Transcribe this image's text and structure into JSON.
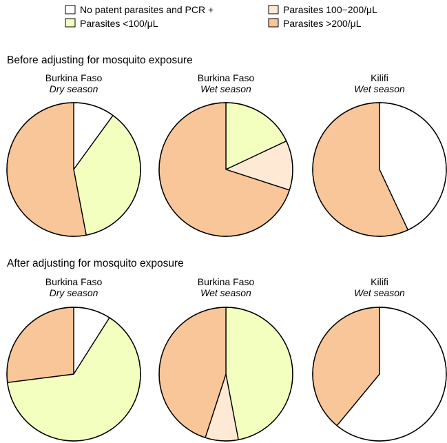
{
  "legend": [
    {
      "label": "No patent parasites and PCR +",
      "color": "#ffffff"
    },
    {
      "label": "Parasites <100/μL",
      "color": "#f2ffbe"
    },
    {
      "label": "Parasites 100−200/μL",
      "color": "#fde9d4"
    },
    {
      "label": "Parasites >200/μL",
      "color": "#f8c698"
    }
  ],
  "chart_data": {
    "type": "pie",
    "categories": [
      "No patent parasites and PCR +",
      "Parasites <100/μL",
      "Parasites 100−200/μL",
      "Parasites >200/μL"
    ],
    "colors": [
      "#ffffff",
      "#f2ffbe",
      "#fde9d4",
      "#f8c698"
    ],
    "sections": [
      {
        "title": "Before adjusting for mosquito exposure",
        "charts": [
          {
            "title": "Burkina Faso",
            "subtitle": "Dry season",
            "values": [
              0.1,
              0.37,
              0.0,
              0.53
            ]
          },
          {
            "title": "Burkina Faso",
            "subtitle": "Wet season",
            "values": [
              0.0,
              0.18,
              0.12,
              0.7
            ]
          },
          {
            "title": "Kilifi",
            "subtitle": "Wet season",
            "values": [
              0.43,
              0.0,
              0.0,
              0.57
            ]
          }
        ]
      },
      {
        "title": "After adjusting for mosquito exposure",
        "charts": [
          {
            "title": "Burkina Faso",
            "subtitle": "Dry season",
            "values": [
              0.09,
              0.64,
              0.0,
              0.27
            ]
          },
          {
            "title": "Burkina Faso",
            "subtitle": "Wet season",
            "values": [
              0.0,
              0.47,
              0.08,
              0.45
            ]
          },
          {
            "title": "Kilifi",
            "subtitle": "Wet season",
            "values": [
              0.61,
              0.0,
              0.0,
              0.39
            ]
          }
        ]
      }
    ]
  }
}
